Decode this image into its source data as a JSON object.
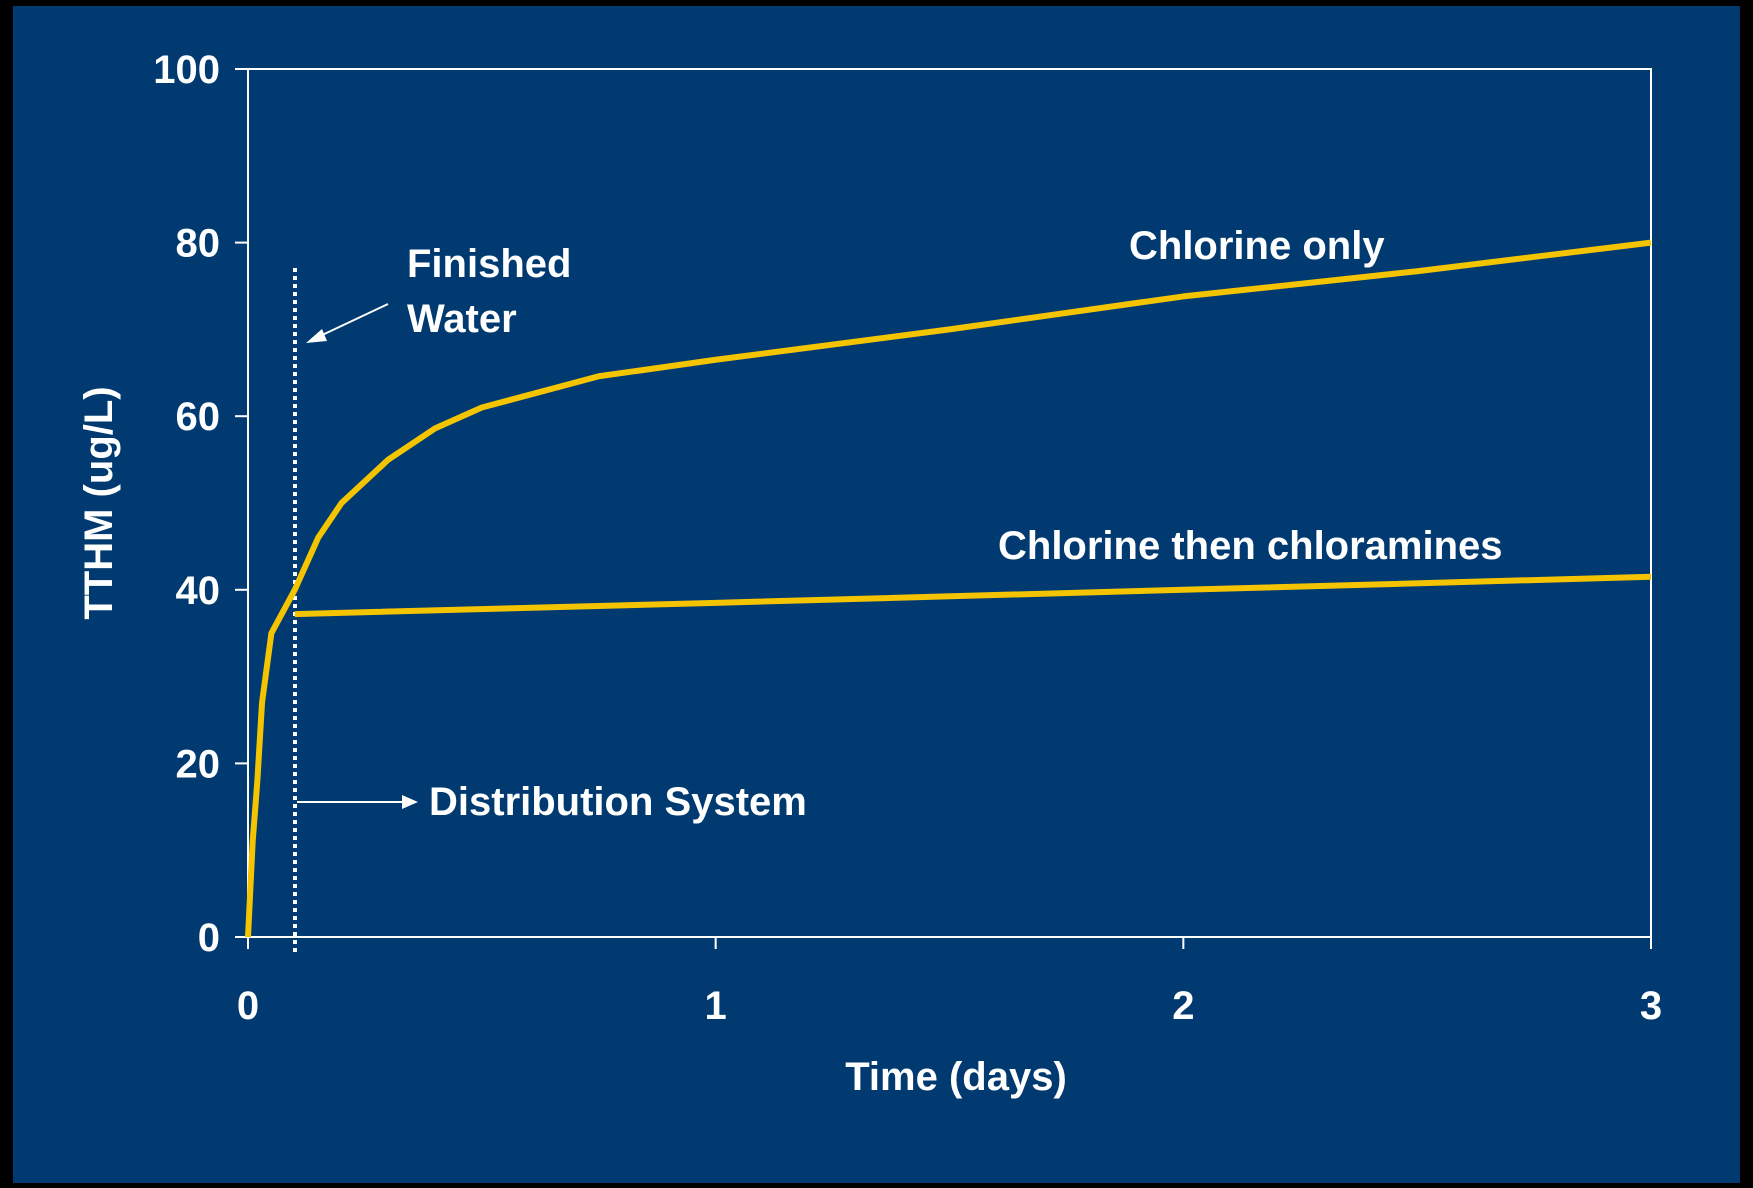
{
  "chart_data": {
    "type": "line",
    "xlabel": "Time (days)",
    "ylabel": "TTHM (ug/L)",
    "xlim": [
      0,
      3
    ],
    "xticks": [
      0,
      1,
      2,
      3
    ],
    "ylim": [
      0,
      100
    ],
    "yticks": [
      0,
      20,
      40,
      60,
      80,
      100
    ],
    "series": [
      {
        "name": "Chlorine only",
        "color": "#f5c400",
        "x": [
          0,
          0.01,
          0.02,
          0.03,
          0.05,
          0.1,
          0.15,
          0.2,
          0.3,
          0.4,
          0.5,
          0.75,
          1,
          1.5,
          2,
          2.5,
          3
        ],
        "values": [
          0,
          11,
          18,
          27,
          35,
          40,
          46,
          50,
          55,
          58.6,
          61,
          64.6,
          66.5,
          70,
          73.8,
          76.7,
          80
        ]
      },
      {
        "name": "Chlorine then chloramines",
        "color": "#f5c400",
        "x": [
          0.1,
          1,
          2,
          3
        ],
        "values": [
          37.2,
          38.5,
          40,
          41.5
        ]
      }
    ],
    "annotations": [
      "Finished",
      "Water",
      "Distribution System"
    ]
  }
}
